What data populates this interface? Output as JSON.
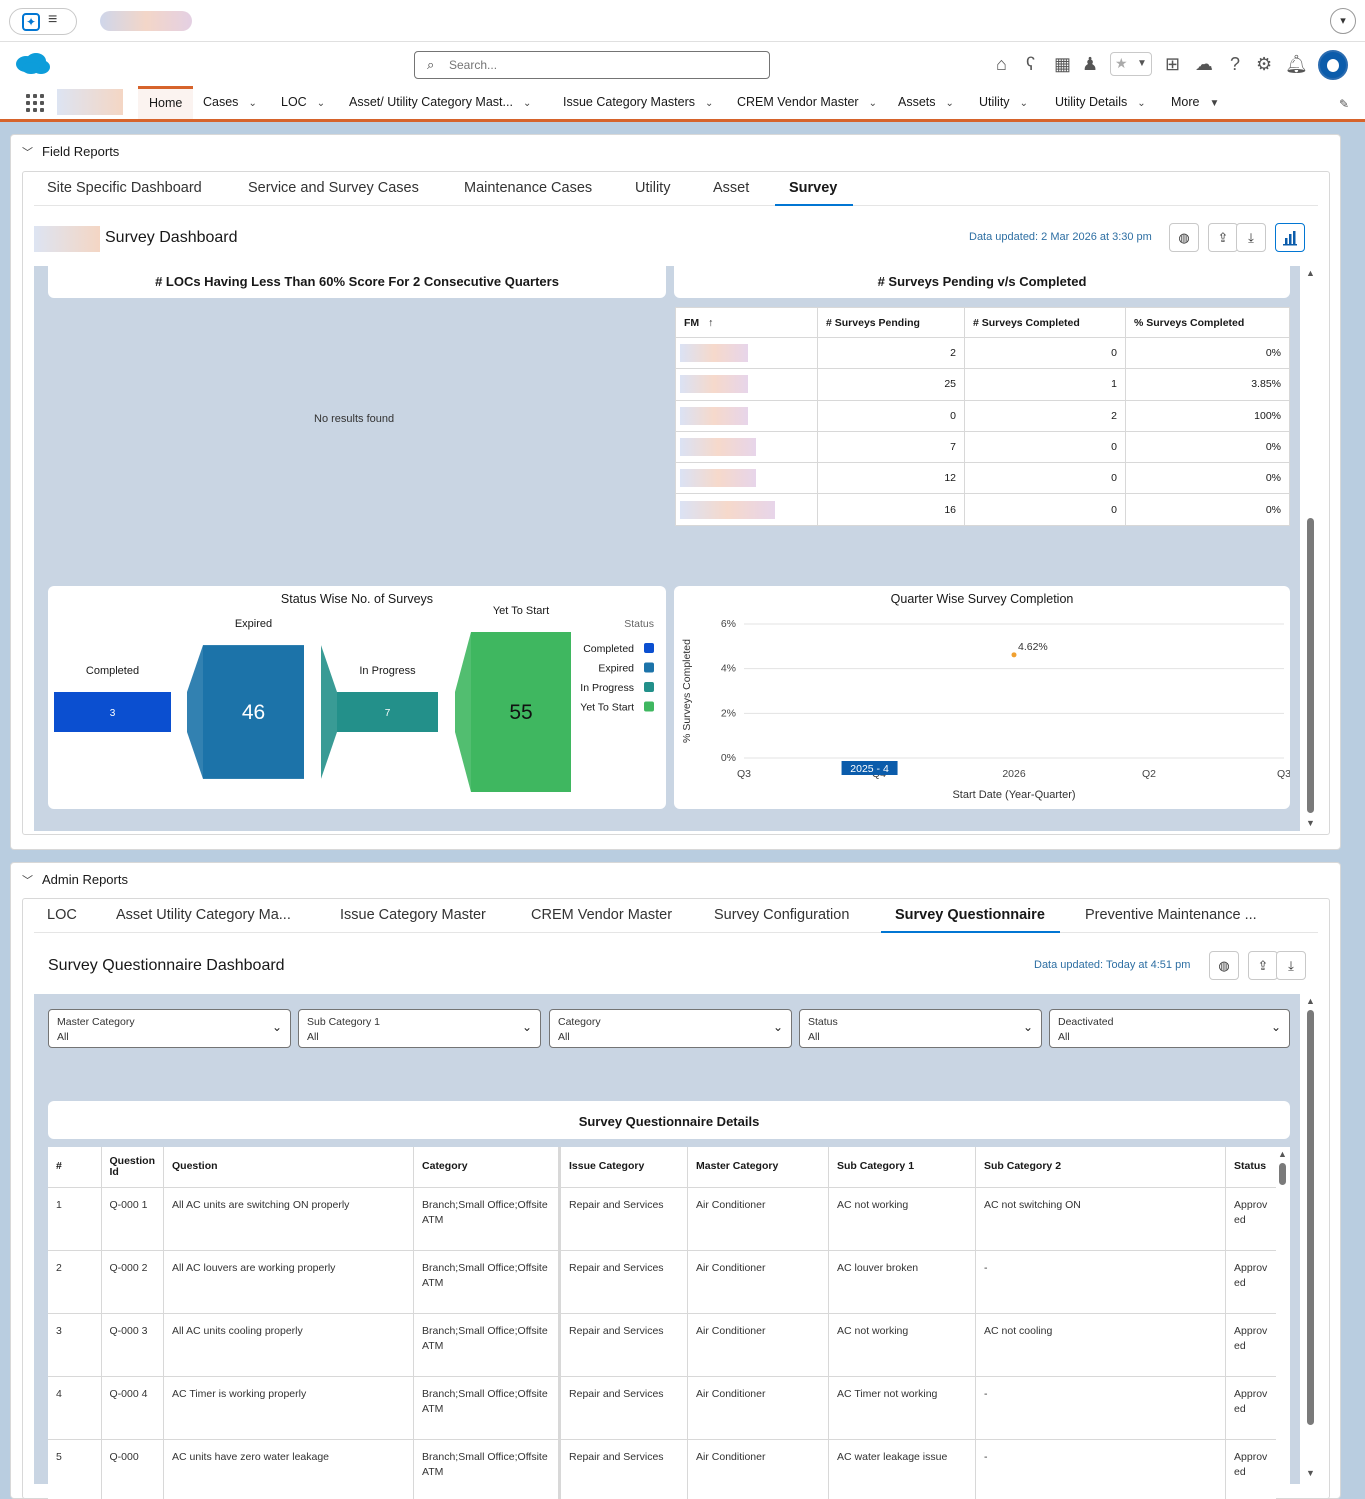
{
  "header": {
    "search_placeholder": "Search..."
  },
  "nav": {
    "items": [
      "Home",
      "Cases",
      "LOC",
      "Asset/ Utility Category Mast...",
      "Issue Category Masters",
      "CREM Vendor Master",
      "Assets",
      "Utility",
      "Utility Details",
      "More"
    ]
  },
  "field_reports": {
    "section_label": "Field Reports",
    "tabs": [
      "Site Specific Dashboard",
      "Service and Survey Cases",
      "Maintenance Cases",
      "Utility",
      "Asset",
      "Survey"
    ],
    "active_tab": "Survey",
    "dashboard_title": "Survey Dashboard",
    "updated": "Data updated: 2 Mar 2026 at 3:30 pm",
    "locs_widget": {
      "title": "# LOCs Having Less Than 60% Score For 2 Consecutive Quarters",
      "empty": "No results found"
    },
    "pending_widget": {
      "title": "# Surveys Pending v/s Completed",
      "columns": [
        "FM",
        "# Surveys Pending",
        "# Surveys Completed",
        "% Surveys Completed"
      ],
      "sort_glyph": "↑",
      "rows": [
        {
          "pending": "2",
          "completed": "0",
          "pct": "0%"
        },
        {
          "pending": "25",
          "completed": "1",
          "pct": "3.85%"
        },
        {
          "pending": "0",
          "completed": "2",
          "pct": "100%"
        },
        {
          "pending": "7",
          "completed": "0",
          "pct": "0%"
        },
        {
          "pending": "12",
          "completed": "0",
          "pct": "0%"
        },
        {
          "pending": "16",
          "completed": "0",
          "pct": "0%"
        }
      ]
    },
    "status_chart_title": "Status Wise  No. of Surveys",
    "quarter_chart_title": "Quarter Wise Survey Completion"
  },
  "chart_data": [
    {
      "type": "bar",
      "title": "Status Wise  No. of Surveys",
      "categories": [
        "Completed",
        "Expired",
        "In Progress",
        "Yet To Start"
      ],
      "values": [
        3,
        46,
        7,
        55
      ],
      "legend_title": "Status",
      "legend": [
        "Completed",
        "Expired",
        "In Progress",
        "Yet To Start"
      ],
      "colors": [
        "#0b4fd0",
        "#1c73a9",
        "#23908a",
        "#3fb760"
      ],
      "legend_placement": "right"
    },
    {
      "type": "scatter",
      "title": "Quarter Wise Survey Completion",
      "xlabel": "Start Date (Year-Quarter)",
      "ylabel": "% Surveys Completed",
      "x_ticks": [
        "Q3",
        "Q4",
        "2026",
        "Q2",
        "Q3"
      ],
      "y_ticks": [
        "0%",
        "2%",
        "4%",
        "6%"
      ],
      "ylim": [
        0,
        6
      ],
      "points": [
        {
          "x": "2025 - 4",
          "y": 4.62,
          "label": "4.62%"
        }
      ],
      "highlight_label": "2025 - 4",
      "point_color": "#f0a030"
    }
  ],
  "admin_reports": {
    "section_label": "Admin Reports",
    "tabs": [
      "LOC",
      "Asset Utility Category Ma...",
      "Issue Category Master",
      "CREM Vendor Master",
      "Survey Configuration",
      "Survey Questionnaire",
      "Preventive Maintenance ..."
    ],
    "active_tab": "Survey Questionnaire",
    "dashboard_title": "Survey Questionnaire Dashboard",
    "updated": "Data updated: Today at 4:51 pm",
    "filters": [
      {
        "label": "Master Category",
        "value": "All"
      },
      {
        "label": "Sub Category 1",
        "value": "All"
      },
      {
        "label": "Category",
        "value": "All"
      },
      {
        "label": "Status",
        "value": "All"
      },
      {
        "label": "Deactivated",
        "value": "All"
      }
    ],
    "table_title": "Survey Questionnaire Details",
    "columns": [
      "#",
      "Question Id",
      "Question",
      "Category",
      "Issue Category",
      "Master Category",
      "Sub Category 1",
      "Sub Category 2",
      "Status"
    ],
    "rows": [
      {
        "n": "1",
        "qid": "Q-000 1",
        "question": "All AC units are switching ON properly",
        "category": "Branch;Small Office;Offsite ATM",
        "issue": "Repair and Services",
        "master": "Air Conditioner",
        "sub1": "AC not working",
        "sub2": "AC not switching ON",
        "status": "Approv ed"
      },
      {
        "n": "2",
        "qid": "Q-000 2",
        "question": "All AC louvers are working properly",
        "category": "Branch;Small Office;Offsite ATM",
        "issue": "Repair and Services",
        "master": "Air Conditioner",
        "sub1": "AC louver broken",
        "sub2": "-",
        "status": "Approv ed"
      },
      {
        "n": "3",
        "qid": "Q-000 3",
        "question": "All AC units cooling properly",
        "category": "Branch;Small Office;Offsite ATM",
        "issue": "Repair and Services",
        "master": "Air Conditioner",
        "sub1": "AC not working",
        "sub2": "AC not cooling",
        "status": "Approv ed"
      },
      {
        "n": "4",
        "qid": "Q-000 4",
        "question": "AC Timer is working properly",
        "category": "Branch;Small Office;Offsite ATM",
        "issue": "Repair and Services",
        "master": "Air Conditioner",
        "sub1": "AC Timer not working",
        "sub2": "-",
        "status": "Approv ed"
      },
      {
        "n": "5",
        "qid": "Q-000",
        "question": "AC units have zero water leakage",
        "category": "Branch;Small Office;Offsite ATM",
        "issue": "Repair and Services",
        "master": "Air Conditioner",
        "sub1": "AC water leakage issue",
        "sub2": "-",
        "status": "Approv ed"
      }
    ]
  },
  "icons": [
    "home-icon",
    "bear-icon",
    "grid-settings-icon",
    "user-settings-icon",
    "star-icon",
    "plus-icon",
    "cloud-icon",
    "help-icon",
    "gear-icon",
    "bell-icon"
  ]
}
